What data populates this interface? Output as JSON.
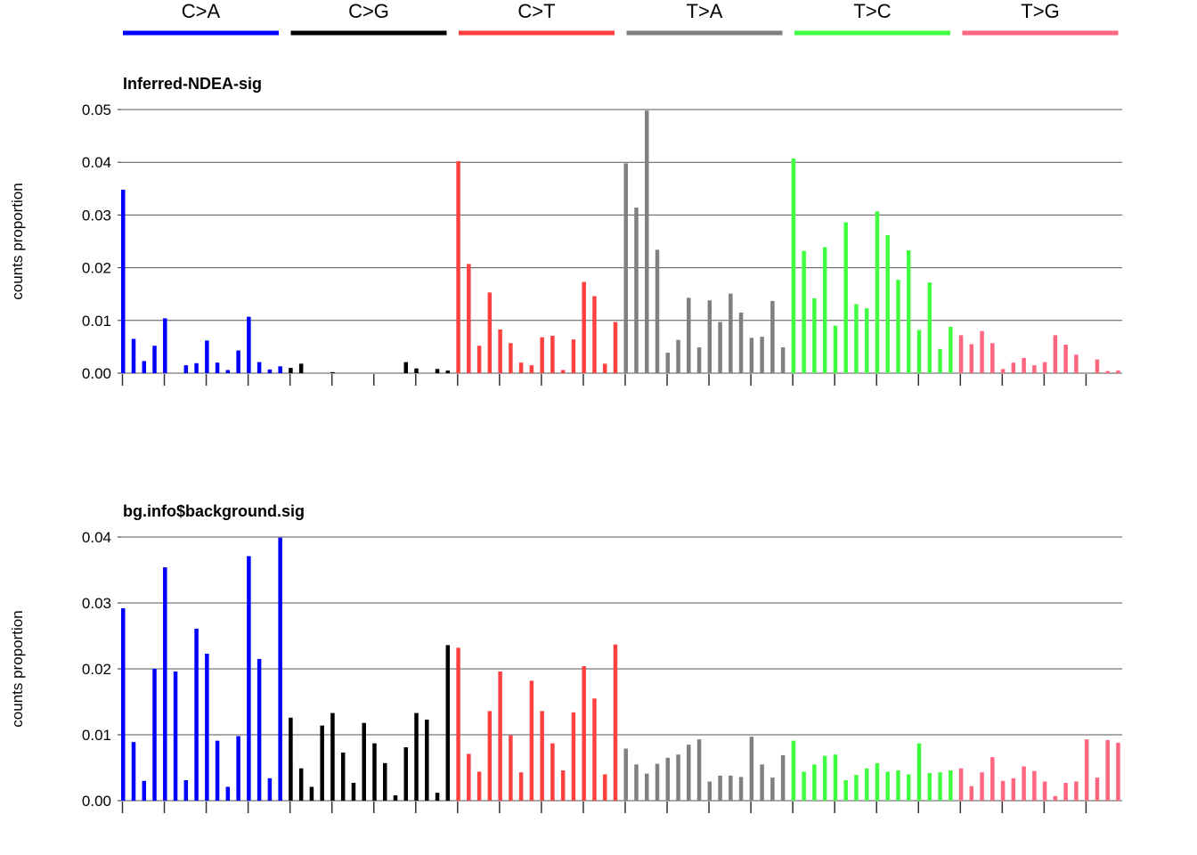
{
  "chart_data": [
    {
      "type": "bar",
      "title": "Inferred-NDEA-sig",
      "xlabel": "",
      "ylabel": "counts proportion",
      "ylim": [
        0,
        0.05
      ],
      "yticks": [
        "0.00",
        "0.01",
        "0.02",
        "0.03",
        "0.04",
        "0.05"
      ],
      "grid": true,
      "groups": [
        {
          "name": "C>A",
          "color": "#0000ff",
          "values": [
            0.0348,
            0.0065,
            0.0023,
            0.0052,
            0.0104,
            0,
            0.0015,
            0.0019,
            0.0062,
            0.002,
            0.0006,
            0.0043,
            0.0107,
            0.0021,
            0.0007,
            0.0013
          ]
        },
        {
          "name": "C>G",
          "color": "#000000",
          "values": [
            0.001,
            0.0018,
            0,
            0,
            0.0002,
            0,
            0,
            0,
            0,
            0,
            0,
            0.0021,
            0.0009,
            0,
            0.0008,
            0.0005
          ]
        },
        {
          "name": "C>T",
          "color": "#ff4040",
          "values": [
            0.0402,
            0.0207,
            0.0052,
            0.0153,
            0.0083,
            0.0057,
            0.002,
            0.0015,
            0.0068,
            0.0071,
            0.0006,
            0.0064,
            0.0173,
            0.0146,
            0.0018,
            0.0097
          ]
        },
        {
          "name": "T>A",
          "color": "#808080",
          "values": [
            0.0398,
            0.0314,
            0.0498,
            0.0234,
            0.0039,
            0.0063,
            0.0143,
            0.0049,
            0.0138,
            0.0097,
            0.0151,
            0.0115,
            0.0067,
            0.0069,
            0.0137,
            0.0049
          ]
        },
        {
          "name": "T>C",
          "color": "#40ff40",
          "values": [
            0.0407,
            0.0232,
            0.0142,
            0.0239,
            0.009,
            0.0286,
            0.0131,
            0.0123,
            0.0307,
            0.0262,
            0.0177,
            0.0233,
            0.0082,
            0.0172,
            0.0046,
            0.0088
          ]
        },
        {
          "name": "T>G",
          "color": "#ff6680",
          "values": [
            0.0072,
            0.0055,
            0.008,
            0.0057,
            0.0008,
            0.002,
            0.0029,
            0.0015,
            0.0021,
            0.0072,
            0.0054,
            0.0035,
            0,
            0.0026,
            0.0004,
            0.0005
          ]
        }
      ]
    },
    {
      "type": "bar",
      "title": "bg.info$background.sig",
      "xlabel": "",
      "ylabel": "counts proportion",
      "ylim": [
        0,
        0.04
      ],
      "yticks": [
        "0.00",
        "0.01",
        "0.02",
        "0.03",
        "0.04"
      ],
      "grid": true,
      "groups": [
        {
          "name": "C>A",
          "color": "#0000ff",
          "values": [
            0.0292,
            0.0089,
            0.003,
            0.02,
            0.0354,
            0.0196,
            0.0031,
            0.0261,
            0.0223,
            0.0091,
            0.0021,
            0.0098,
            0.0371,
            0.0215,
            0.0034,
            0.0399
          ]
        },
        {
          "name": "C>G",
          "color": "#000000",
          "values": [
            0.0126,
            0.0049,
            0.0021,
            0.0114,
            0.0133,
            0.0073,
            0.0027,
            0.0118,
            0.0087,
            0.0057,
            0.0008,
            0.0081,
            0.0133,
            0.0123,
            0.0012,
            0.0236
          ]
        },
        {
          "name": "C>T",
          "color": "#ff4040",
          "values": [
            0.0232,
            0.0071,
            0.0044,
            0.0136,
            0.0196,
            0.0099,
            0.0043,
            0.0182,
            0.0136,
            0.0087,
            0.0046,
            0.0134,
            0.0204,
            0.0155,
            0.004,
            0.0237
          ]
        },
        {
          "name": "T>A",
          "color": "#808080",
          "values": [
            0.0079,
            0.0055,
            0.0041,
            0.0056,
            0.0065,
            0.007,
            0.0085,
            0.0093,
            0.0029,
            0.0038,
            0.0038,
            0.0036,
            0.0097,
            0.0055,
            0.0035,
            0.0069
          ]
        },
        {
          "name": "T>C",
          "color": "#40ff40",
          "values": [
            0.0091,
            0.0044,
            0.0055,
            0.0068,
            0.007,
            0.0031,
            0.0039,
            0.0049,
            0.0057,
            0.0044,
            0.0046,
            0.004,
            0.0087,
            0.0042,
            0.0043,
            0.0046
          ]
        },
        {
          "name": "T>G",
          "color": "#ff6680",
          "values": [
            0.0049,
            0.0022,
            0.0043,
            0.0066,
            0.003,
            0.0034,
            0.0052,
            0.0045,
            0.0029,
            0.0007,
            0.0027,
            0.0029,
            0.0093,
            0.0035,
            0.0092,
            0.0088
          ]
        }
      ]
    }
  ]
}
